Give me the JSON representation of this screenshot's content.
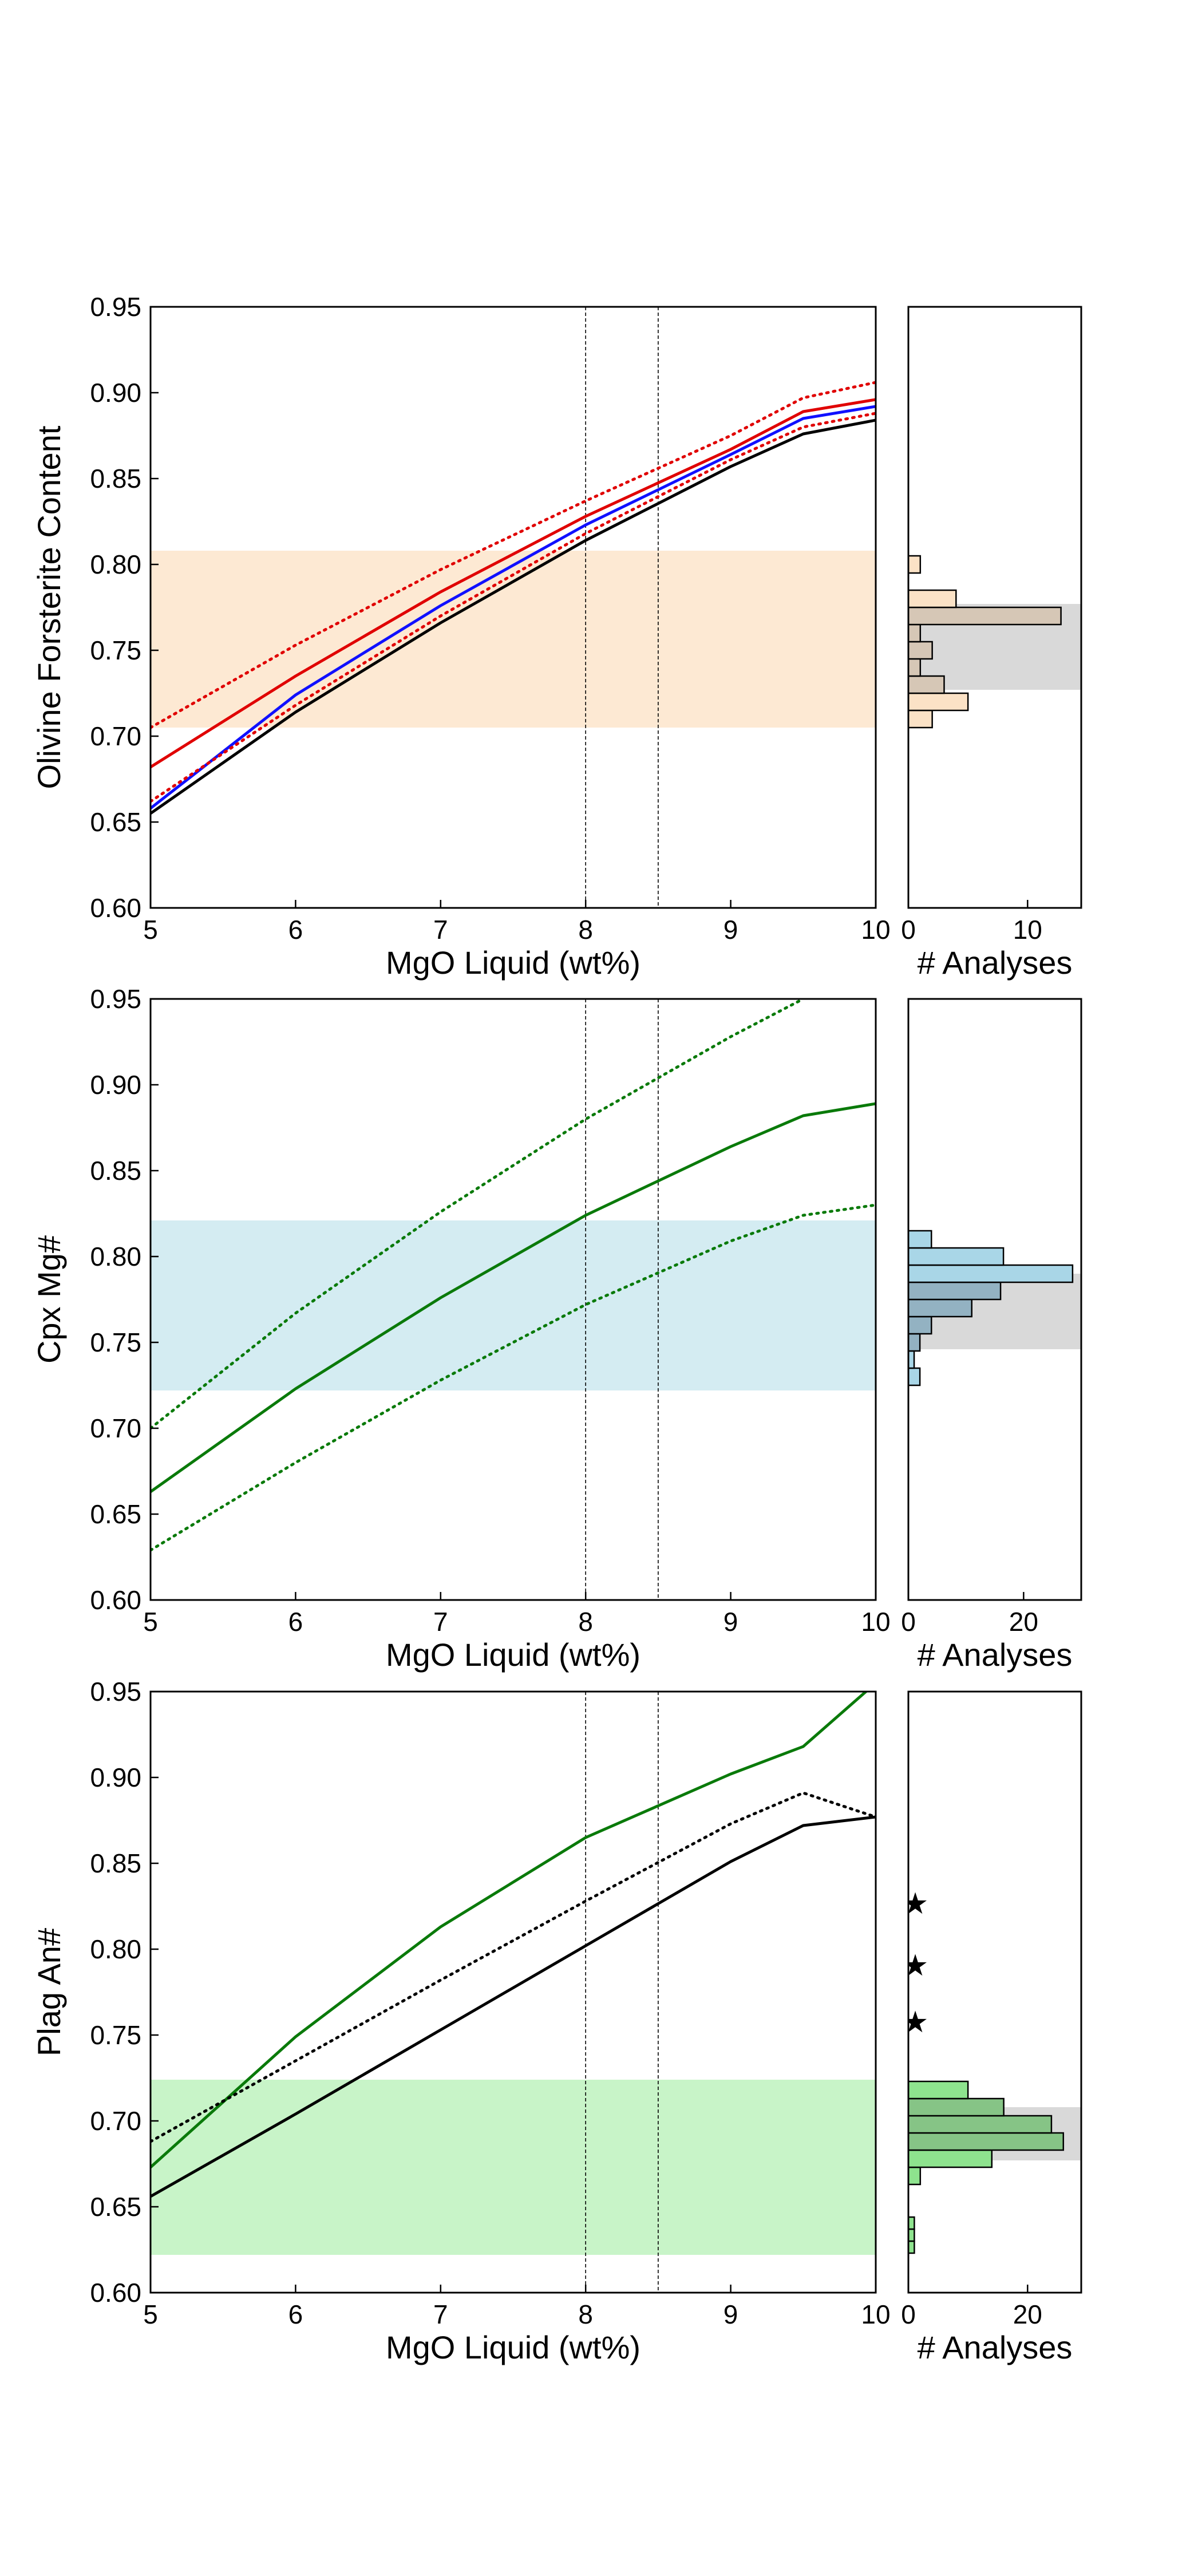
{
  "chart_data": [
    {
      "type": "line",
      "panel": "olivine",
      "xlabel": "MgO Liquid  (wt%)",
      "ylabel": "Olivine Forsterite Content",
      "xlim": [
        5,
        10
      ],
      "ylim": [
        0.6,
        0.95
      ],
      "xticks": [
        5,
        6,
        7,
        8,
        9,
        10
      ],
      "yticks": [
        0.6,
        0.65,
        0.7,
        0.75,
        0.8,
        0.85,
        0.9,
        0.95
      ],
      "vlines": [
        8.0,
        8.5
      ],
      "band": {
        "y0": 0.705,
        "y1": 0.808,
        "color": "#fde9d3"
      },
      "series": [
        {
          "color": "#e00000",
          "style": "dotted",
          "x": [
            5,
            6,
            7,
            8,
            9,
            9.5,
            10
          ],
          "y": [
            0.705,
            0.753,
            0.797,
            0.837,
            0.875,
            0.897,
            0.906
          ]
        },
        {
          "color": "#e00000",
          "style": "solid",
          "x": [
            5,
            6,
            7,
            8,
            9,
            9.5,
            10
          ],
          "y": [
            0.682,
            0.735,
            0.784,
            0.828,
            0.867,
            0.889,
            0.896
          ]
        },
        {
          "color": "#1010ff",
          "style": "solid",
          "x": [
            5,
            6,
            7,
            8,
            9,
            9.5,
            10
          ],
          "y": [
            0.658,
            0.724,
            0.776,
            0.823,
            0.864,
            0.885,
            0.892
          ]
        },
        {
          "color": "#e00000",
          "style": "dotted",
          "x": [
            5,
            6,
            7,
            8,
            9,
            9.5,
            10
          ],
          "y": [
            0.662,
            0.718,
            0.77,
            0.818,
            0.861,
            0.88,
            0.888
          ]
        },
        {
          "color": "#000000",
          "style": "solid",
          "x": [
            5,
            6,
            7,
            8,
            9,
            9.5,
            10
          ],
          "y": [
            0.655,
            0.714,
            0.766,
            0.814,
            0.857,
            0.876,
            0.884
          ]
        }
      ],
      "histogram": {
        "xlabel": "# Analyses",
        "xlim": [
          0,
          14.5
        ],
        "xticks": [
          0,
          10
        ],
        "shade": {
          "y0": 0.727,
          "y1": 0.777
        },
        "bars": [
          {
            "y0": 0.705,
            "y1": 0.715,
            "count": 2,
            "color": "#fbe2c6"
          },
          {
            "y0": 0.715,
            "y1": 0.725,
            "count": 5,
            "color": "#fbe2c6"
          },
          {
            "y0": 0.725,
            "y1": 0.735,
            "count": 3,
            "color": "#d6c7b6"
          },
          {
            "y0": 0.735,
            "y1": 0.745,
            "count": 1,
            "color": "#d6c7b6"
          },
          {
            "y0": 0.745,
            "y1": 0.755,
            "count": 2,
            "color": "#d6c7b6"
          },
          {
            "y0": 0.755,
            "y1": 0.765,
            "count": 1,
            "color": "#d6c7b6"
          },
          {
            "y0": 0.765,
            "y1": 0.775,
            "count": 12.8,
            "color": "#d6c7b6"
          },
          {
            "y0": 0.775,
            "y1": 0.785,
            "count": 4,
            "color": "#fbe2c6"
          },
          {
            "y0": 0.795,
            "y1": 0.805,
            "count": 1,
            "color": "#fbe2c6"
          }
        ]
      }
    },
    {
      "type": "line",
      "panel": "cpx",
      "xlabel": "MgO Liquid  (wt%)",
      "ylabel": "Cpx Mg#",
      "xlim": [
        5,
        10
      ],
      "ylim": [
        0.6,
        0.95
      ],
      "xticks": [
        5,
        6,
        7,
        8,
        9,
        10
      ],
      "yticks": [
        0.6,
        0.65,
        0.7,
        0.75,
        0.8,
        0.85,
        0.9,
        0.95
      ],
      "vlines": [
        8.0,
        8.5
      ],
      "band": {
        "y0": 0.722,
        "y1": 0.821,
        "color": "#d4ecf2"
      },
      "series": [
        {
          "color": "#0a7a0a",
          "style": "dotted",
          "x": [
            5,
            6,
            7,
            8,
            9,
            9.5
          ],
          "y": [
            0.7,
            0.767,
            0.826,
            0.88,
            0.928,
            0.95
          ]
        },
        {
          "color": "#0a7a0a",
          "style": "solid",
          "x": [
            5,
            6,
            7,
            8,
            9,
            9.5,
            10
          ],
          "y": [
            0.663,
            0.723,
            0.776,
            0.824,
            0.864,
            0.882,
            0.889
          ]
        },
        {
          "color": "#0a7a0a",
          "style": "dotted",
          "x": [
            5,
            6,
            7,
            8,
            9,
            9.5,
            10
          ],
          "y": [
            0.629,
            0.68,
            0.728,
            0.772,
            0.809,
            0.824,
            0.83
          ]
        }
      ],
      "histogram": {
        "xlabel": "# Analyses",
        "xlim": [
          0,
          30
        ],
        "xticks": [
          0,
          20
        ],
        "shade": {
          "y0": 0.746,
          "y1": 0.79
        },
        "bars": [
          {
            "y0": 0.725,
            "y1": 0.735,
            "count": 2,
            "color": "#a9d6e7"
          },
          {
            "y0": 0.735,
            "y1": 0.745,
            "count": 1,
            "color": "#a9d6e7"
          },
          {
            "y0": 0.745,
            "y1": 0.755,
            "count": 2,
            "color": "#93b2c2"
          },
          {
            "y0": 0.755,
            "y1": 0.765,
            "count": 4,
            "color": "#93b2c2"
          },
          {
            "y0": 0.765,
            "y1": 0.775,
            "count": 11,
            "color": "#93b2c2"
          },
          {
            "y0": 0.775,
            "y1": 0.785,
            "count": 16,
            "color": "#93b2c2"
          },
          {
            "y0": 0.785,
            "y1": 0.795,
            "count": 28.5,
            "color": "#a9d6e7"
          },
          {
            "y0": 0.795,
            "y1": 0.805,
            "count": 16.5,
            "color": "#a9d6e7"
          },
          {
            "y0": 0.805,
            "y1": 0.815,
            "count": 4,
            "color": "#a9d6e7"
          }
        ]
      }
    },
    {
      "type": "line",
      "panel": "plag",
      "xlabel": "MgO Liquid (wt%)",
      "ylabel": "Plag An#",
      "xlim": [
        5,
        10
      ],
      "ylim": [
        0.6,
        0.95
      ],
      "xticks": [
        5,
        6,
        7,
        8,
        9,
        10
      ],
      "yticks": [
        0.6,
        0.65,
        0.7,
        0.75,
        0.8,
        0.85,
        0.9,
        0.95
      ],
      "vlines": [
        8.0,
        8.5
      ],
      "band": {
        "y0": 0.622,
        "y1": 0.724,
        "color": "#c8f4c8"
      },
      "series": [
        {
          "color": "#0a7a0a",
          "style": "solid",
          "x": [
            5,
            6,
            7,
            8,
            9,
            9.5,
            10
          ],
          "y": [
            0.673,
            0.749,
            0.813,
            0.865,
            0.902,
            0.918,
            0.955
          ]
        },
        {
          "color": "#000000",
          "style": "dotted",
          "x": [
            5,
            6,
            7,
            8,
            9,
            9.5,
            10
          ],
          "y": [
            0.688,
            0.735,
            0.782,
            0.828,
            0.873,
            0.891,
            0.877
          ]
        },
        {
          "color": "#000000",
          "style": "solid",
          "x": [
            5,
            6,
            7,
            8,
            9,
            9.5,
            10
          ],
          "y": [
            0.656,
            0.704,
            0.753,
            0.802,
            0.851,
            0.872,
            0.877
          ]
        }
      ],
      "histogram": {
        "xlabel": "# Analyses",
        "xlim": [
          0,
          29
        ],
        "xticks": [
          0,
          20
        ],
        "shade": {
          "y0": 0.677,
          "y1": 0.708
        },
        "bars": [
          {
            "y0": 0.623,
            "y1": 0.63,
            "count": 1,
            "color": "#8ee38e"
          },
          {
            "y0": 0.63,
            "y1": 0.637,
            "count": 1,
            "color": "#8ee38e"
          },
          {
            "y0": 0.637,
            "y1": 0.644,
            "count": 1,
            "color": "#8ee38e"
          },
          {
            "y0": 0.663,
            "y1": 0.673,
            "count": 2,
            "color": "#8ee38e"
          },
          {
            "y0": 0.673,
            "y1": 0.683,
            "count": 14,
            "color": "#8ee38e"
          },
          {
            "y0": 0.683,
            "y1": 0.693,
            "count": 26,
            "color": "#86c486"
          },
          {
            "y0": 0.693,
            "y1": 0.703,
            "count": 24,
            "color": "#86c486"
          },
          {
            "y0": 0.703,
            "y1": 0.713,
            "count": 16,
            "color": "#86c486"
          },
          {
            "y0": 0.713,
            "y1": 0.723,
            "count": 10,
            "color": "#8ee38e"
          }
        ],
        "stars": [
          0.757,
          0.79,
          0.826
        ]
      }
    }
  ]
}
